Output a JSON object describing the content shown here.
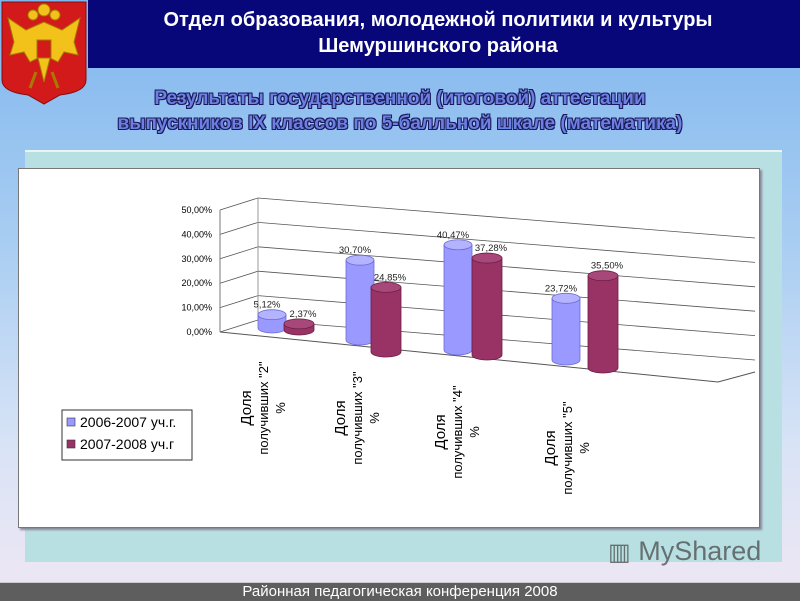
{
  "header": {
    "line1": "Отдел образования, молодежной политики и культуры",
    "line2": "Шемуршинского района"
  },
  "subtitle": {
    "line1": "Результаты государственной (итоговой) аттестации",
    "line2": "выпускников IX классов по 5-балльной шкале (математика)"
  },
  "footer": {
    "text": "Районная педагогическая  конференция 2008"
  },
  "watermark": "MyShared",
  "chart_data": {
    "type": "bar",
    "title": "",
    "categories": [
      [
        "Доля",
        "получивших \"2\"",
        "%"
      ],
      [
        "Доля",
        "получивших \"3\"",
        "%"
      ],
      [
        "Доля",
        "получивших \"4\"",
        "%"
      ],
      [
        "Доля",
        "получивших \"5\"",
        "%"
      ]
    ],
    "series": [
      {
        "name": "2006-2007 уч.г.",
        "color": "#9999ff",
        "values": [
          5.12,
          30.7,
          40.47,
          23.72
        ],
        "labels": [
          "5,12%",
          "30,70%",
          "40,47%",
          "23,72%"
        ]
      },
      {
        "name": "2007-2008 уч.г",
        "color": "#993366",
        "values": [
          2.37,
          24.85,
          37.28,
          35.5
        ],
        "labels": [
          "2,37%",
          "24,85%",
          "37,28%",
          "35,50%"
        ]
      }
    ],
    "yticks": [
      "0,00%",
      "10,00%",
      "20,00%",
      "30,00%",
      "40,00%",
      "50,00%"
    ],
    "ylim": [
      0,
      50
    ],
    "legend": "left",
    "grid": true
  }
}
